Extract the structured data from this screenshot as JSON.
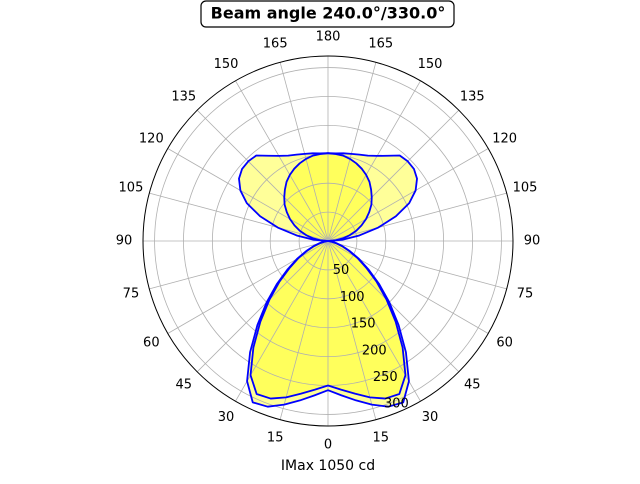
{
  "chart_data": {
    "type": "polar",
    "title": "Beam angle 240.0°/330.0°",
    "xlabel": "IMax 1050 cd",
    "theta": [
      0,
      5,
      10,
      15,
      20,
      25,
      30,
      35,
      40,
      45,
      50,
      55,
      60,
      65,
      70,
      75,
      80,
      85,
      90,
      95,
      100,
      105,
      110,
      115,
      120,
      125,
      130,
      135,
      140,
      145,
      150,
      155,
      160,
      165,
      170,
      175,
      180,
      185,
      190,
      195,
      200,
      205,
      210,
      215,
      220,
      225,
      230,
      235,
      240,
      245,
      250,
      255,
      260,
      265,
      270,
      275,
      280,
      285,
      290,
      295,
      300,
      305,
      310,
      315,
      320,
      325,
      330,
      335,
      340,
      345,
      350,
      355
    ],
    "series": [
      {
        "color": "#0000ff",
        "fill": "#ffff00",
        "values": [
          258,
          268,
          280,
          293,
          305,
          308,
          280,
          235,
          190,
          150,
          115,
          85,
          62,
          42,
          27,
          15,
          7,
          2,
          0,
          25,
          55,
          90,
          125,
          155,
          175,
          188,
          194,
          195,
          193,
          180,
          170,
          163,
          159,
          156,
          154,
          152,
          152,
          152,
          154,
          156,
          159,
          163,
          170,
          180,
          193,
          195,
          194,
          188,
          175,
          155,
          125,
          90,
          55,
          25,
          0,
          2,
          7,
          15,
          27,
          42,
          62,
          85,
          115,
          150,
          190,
          235,
          280,
          308,
          305,
          293,
          280,
          268
        ]
      },
      {
        "color": "#0000ff",
        "fill": "#ffff00",
        "values": [
          250,
          258,
          268,
          280,
          290,
          292,
          268,
          225,
          182,
          143,
          110,
          81,
          59,
          40,
          26,
          14,
          6,
          2,
          0,
          13,
          26,
          39,
          52,
          64,
          76,
          87,
          98,
          107,
          116,
          125,
          132,
          138,
          143,
          147,
          150,
          151,
          152,
          151,
          150,
          147,
          143,
          138,
          132,
          125,
          116,
          107,
          98,
          87,
          76,
          64,
          52,
          39,
          26,
          13,
          0,
          2,
          6,
          14,
          26,
          40,
          59,
          81,
          110,
          143,
          182,
          225,
          268,
          292,
          290,
          280,
          268,
          258
        ]
      }
    ],
    "rlim": [
      0,
      320
    ],
    "rticks": [
      50,
      100,
      150,
      200,
      250,
      300
    ],
    "thetaticks": [
      0,
      15,
      30,
      45,
      60,
      75,
      90,
      105,
      120,
      135,
      150,
      165,
      180,
      {
        "value": 195,
        "label": "165"
      },
      {
        "value": 210,
        "label": "150"
      },
      {
        "value": 225,
        "label": "135"
      },
      {
        "value": 240,
        "label": "120"
      },
      {
        "value": 255,
        "label": "105"
      },
      {
        "value": 270,
        "label": "90"
      },
      {
        "value": 285,
        "label": "75"
      },
      {
        "value": 300,
        "label": "60"
      },
      {
        "value": 315,
        "label": "45"
      },
      {
        "value": 330,
        "label": "30"
      },
      {
        "value": 345,
        "label": "15"
      }
    ],
    "grid": true
  }
}
